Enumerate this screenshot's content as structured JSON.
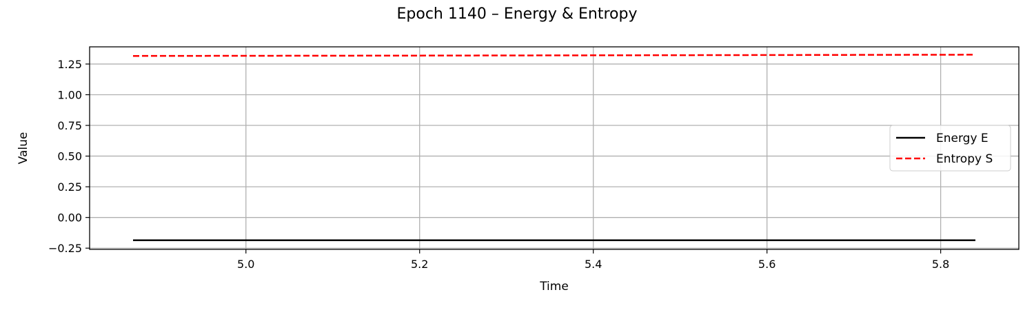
{
  "chart_data": {
    "type": "line",
    "title": "Epoch 1140 – Energy & Entropy",
    "xlabel": "Time",
    "ylabel": "Value",
    "xlim": [
      4.82,
      5.89
    ],
    "ylim": [
      -0.26,
      1.39
    ],
    "x_ticks": [
      5.0,
      5.2,
      5.4,
      5.6,
      5.8
    ],
    "x_tick_labels": [
      "5.0",
      "5.2",
      "5.4",
      "5.6",
      "5.8"
    ],
    "y_ticks": [
      -0.25,
      0.0,
      0.25,
      0.5,
      0.75,
      1.0,
      1.25
    ],
    "y_tick_labels": [
      "−0.25",
      "0.00",
      "0.25",
      "0.50",
      "0.75",
      "1.00",
      "1.25"
    ],
    "grid": true,
    "legend_position": "center-right",
    "x": [
      4.87,
      5.0,
      5.2,
      5.4,
      5.6,
      5.84
    ],
    "series": [
      {
        "name": "Energy E",
        "color": "#000000",
        "style": "solid",
        "values": [
          -0.186,
          -0.186,
          -0.186,
          -0.186,
          -0.186,
          -0.186
        ]
      },
      {
        "name": "Entropy S",
        "color": "#ff0000",
        "style": "dashed",
        "values": [
          1.316,
          1.317,
          1.319,
          1.321,
          1.323,
          1.326
        ]
      }
    ]
  }
}
